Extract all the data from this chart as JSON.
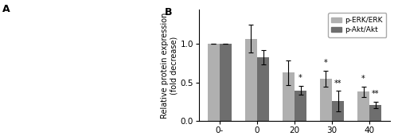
{
  "categories": [
    "0-",
    "0",
    "20",
    "30",
    "40"
  ],
  "erk_values": [
    1.0,
    1.07,
    0.63,
    0.55,
    0.38
  ],
  "akt_values": [
    1.0,
    0.83,
    0.4,
    0.26,
    0.21
  ],
  "erk_errors": [
    0.0,
    0.18,
    0.16,
    0.1,
    0.07
  ],
  "akt_errors": [
    0.0,
    0.09,
    0.06,
    0.13,
    0.04
  ],
  "erk_color": "#b0b0b0",
  "akt_color": "#6e6e6e",
  "ylabel": "Relative protein expression\n(fold decrease)",
  "ylim": [
    0.0,
    1.45
  ],
  "yticks": [
    0.0,
    0.5,
    1.0
  ],
  "bar_width": 0.32,
  "legend_labels": [
    "p-ERK/ERK",
    "p-Akt/Akt"
  ],
  "erk_sig": [
    "",
    "",
    "",
    "*",
    "*"
  ],
  "akt_sig": [
    "",
    "",
    "*",
    "**",
    "**"
  ],
  "panel_b_label": "B",
  "panel_a_label": "A",
  "background": "#ffffff"
}
